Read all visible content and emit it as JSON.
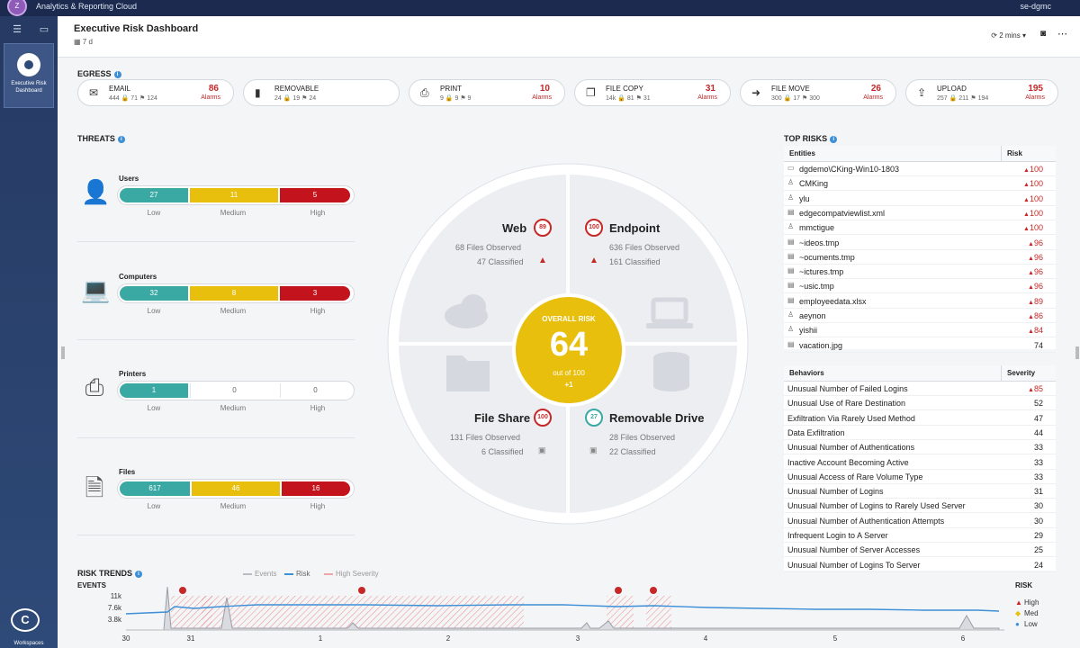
{
  "topbar": {
    "app_title": "Analytics & Reporting Cloud",
    "user": "se-dgmc",
    "logo": "Z"
  },
  "sidebar": {
    "tile_label": "Executive Risk Dashboard",
    "brand": "C",
    "workspace": "Workspaces"
  },
  "header": {
    "title": "Executive Risk Dashboard",
    "subtitle": "7 d",
    "refresh": "2 mins ▾"
  },
  "egress": {
    "title": "EGRESS",
    "cards": [
      {
        "name": "EMAIL",
        "stats": "444 🔒 71 ⚑ 124",
        "count": "86",
        "label": "Alarms",
        "icon": "email-icon"
      },
      {
        "name": "REMOVABLE",
        "stats": "24 🔒 19 ⚑ 24",
        "count": "",
        "label": "",
        "icon": "removable-icon"
      },
      {
        "name": "PRINT",
        "stats": "9 🔒 9 ⚑ 9",
        "count": "10",
        "label": "Alarms",
        "icon": "printer-icon"
      },
      {
        "name": "FILE COPY",
        "stats": "14k 🔒 81 ⚑ 31",
        "count": "31",
        "label": "Alarms",
        "icon": "file-copy-icon"
      },
      {
        "name": "FILE MOVE",
        "stats": "300 🔒 17 ⚑ 300",
        "count": "26",
        "label": "Alarms",
        "icon": "file-move-icon"
      },
      {
        "name": "UPLOAD",
        "stats": "257 🔒 211 ⚑ 194",
        "count": "195",
        "label": "Alarms",
        "icon": "upload-icon"
      }
    ]
  },
  "threats": {
    "title": "THREATS",
    "rows": [
      {
        "name": "Users",
        "low": "27",
        "medium": "11",
        "high": "5"
      },
      {
        "name": "Computers",
        "low": "32",
        "medium": "8",
        "high": "3"
      },
      {
        "name": "Printers",
        "low": "1",
        "medium": "0",
        "high": "0"
      },
      {
        "name": "Files",
        "low": "617",
        "medium": "46",
        "high": "16"
      }
    ],
    "labels": {
      "low": "Low",
      "medium": "Medium",
      "high": "High"
    }
  },
  "radial": {
    "web": {
      "title": "Web",
      "score": "89",
      "observed": "68 Files Observed",
      "classified": "47 Classified"
    },
    "endpoint": {
      "title": "Endpoint",
      "score": "100",
      "observed": "636 Files Observed",
      "classified": "161 Classified"
    },
    "fileshare": {
      "title": "File Share",
      "score": "100",
      "observed": "131 Files Observed",
      "classified": "6 Classified"
    },
    "removable": {
      "title": "Removable Drive",
      "score": "27",
      "observed": "28 Files Observed",
      "classified": "22 Classified"
    },
    "overall": {
      "label": "OVERALL RISK",
      "value": "64",
      "outof": "out of 100",
      "delta": "+1"
    }
  },
  "top_risks": {
    "title": "TOP RISKS",
    "col1": "Entities",
    "col2": "Risk",
    "rows": [
      {
        "name": "dgdemo\\CKing-Win10-1803",
        "risk": "100",
        "red": true,
        "icon": "computer-icon"
      },
      {
        "name": "CMKing",
        "risk": "100",
        "red": true,
        "icon": "user-icon"
      },
      {
        "name": "ylu",
        "risk": "100",
        "red": true,
        "icon": "user-icon"
      },
      {
        "name": "edgecompatviewlist.xml",
        "risk": "100",
        "red": true,
        "icon": "file-icon"
      },
      {
        "name": "mmctigue",
        "risk": "100",
        "red": true,
        "icon": "user-icon"
      },
      {
        "name": "~ideos.tmp",
        "risk": "96",
        "red": true,
        "icon": "file-icon"
      },
      {
        "name": "~ocuments.tmp",
        "risk": "96",
        "red": true,
        "icon": "file-icon"
      },
      {
        "name": "~ictures.tmp",
        "risk": "96",
        "red": true,
        "icon": "file-icon"
      },
      {
        "name": "~usic.tmp",
        "risk": "96",
        "red": true,
        "icon": "file-icon"
      },
      {
        "name": "employeedata.xlsx",
        "risk": "89",
        "red": true,
        "icon": "file-icon"
      },
      {
        "name": "aeynon",
        "risk": "86",
        "red": true,
        "icon": "user-icon"
      },
      {
        "name": "yishii",
        "risk": "84",
        "red": true,
        "icon": "user-icon"
      },
      {
        "name": "vacation.jpg",
        "risk": "74",
        "red": false,
        "icon": "file-icon"
      }
    ]
  },
  "behaviors": {
    "col1": "Behaviors",
    "col2": "Severity",
    "rows": [
      {
        "name": "Unusual Number of Failed Logins",
        "sev": "85",
        "red": true
      },
      {
        "name": "Unusual Use of Rare Destination",
        "sev": "52",
        "red": false
      },
      {
        "name": "Exfiltration Via Rarely Used Method",
        "sev": "47",
        "red": false
      },
      {
        "name": "Data Exfiltration",
        "sev": "44",
        "red": false
      },
      {
        "name": "Unusual Number of Authentications",
        "sev": "33",
        "red": false
      },
      {
        "name": "Inactive Account Becoming Active",
        "sev": "33",
        "red": false
      },
      {
        "name": "Unusual Access of Rare Volume Type",
        "sev": "33",
        "red": false
      },
      {
        "name": "Unusual Number of Logins",
        "sev": "31",
        "red": false
      },
      {
        "name": "Unusual Number of Logins to Rarely Used Server",
        "sev": "30",
        "red": false
      },
      {
        "name": "Unusual Number of Authentication Attempts",
        "sev": "30",
        "red": false
      },
      {
        "name": "Infrequent Login to A Server",
        "sev": "29",
        "red": false
      },
      {
        "name": "Unusual Number of Server Accesses",
        "sev": "25",
        "red": false
      },
      {
        "name": "Unusual Number of Logins To Server",
        "sev": "24",
        "red": false
      }
    ]
  },
  "trends": {
    "title": "RISK TRENDS",
    "legend": [
      "Events",
      "Risk",
      "High Severity"
    ],
    "events_label": "EVENTS",
    "yticks": [
      "11k",
      "7.6k",
      "3.8k"
    ],
    "risk_label": "RISK",
    "risk_levels": [
      "High",
      "Med",
      "Low"
    ],
    "xticks": [
      "30",
      "31",
      "1",
      "2",
      "3",
      "4",
      "5",
      "6"
    ],
    "colors": {
      "risk": "#3d8fd6",
      "events": "#b9bcc2",
      "high": "#e57373"
    }
  }
}
